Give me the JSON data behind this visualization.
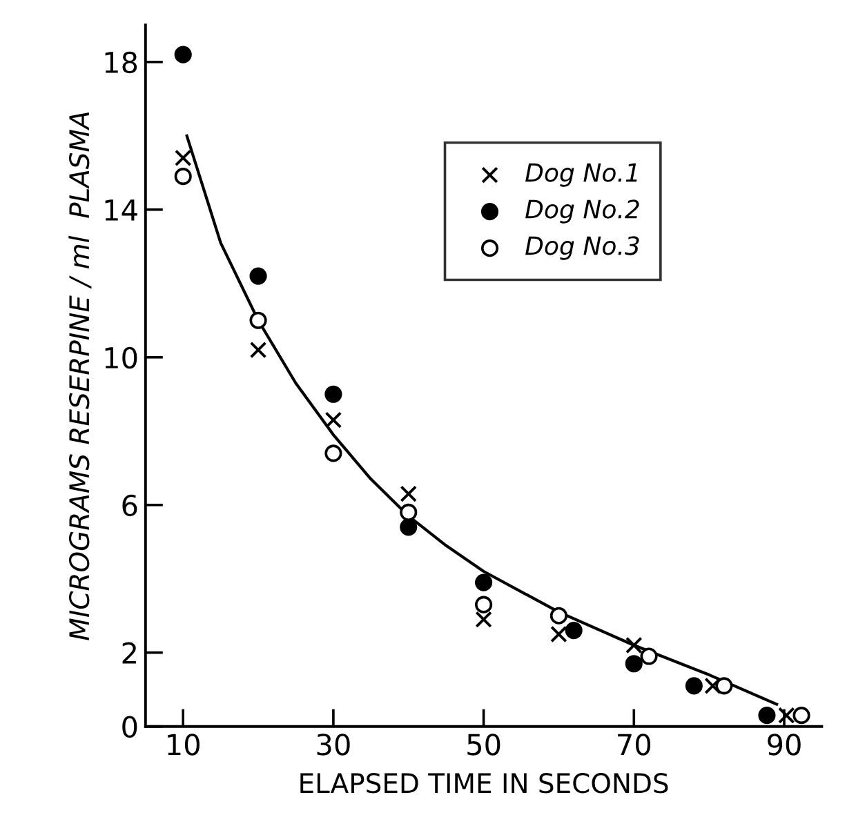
{
  "chart_data": {
    "type": "scatter",
    "xlabel": "ELAPSED TIME IN SECONDS",
    "ylabel": "MICROGRAMS RESERPINE / ml  PLASMA",
    "xlim": [
      5,
      95
    ],
    "ylim": [
      0,
      19
    ],
    "xticks": [
      10,
      30,
      50,
      70,
      90
    ],
    "yticks": [
      0,
      2,
      6,
      10,
      14,
      18
    ],
    "grid": false,
    "legend": "top right",
    "series": [
      {
        "name": "Dog No.1",
        "color": "#000000",
        "marker": "cross",
        "x": [
          10,
          20,
          30,
          40,
          50,
          60,
          70,
          80.5,
          90.3
        ],
        "values": [
          15.4,
          10.2,
          8.3,
          6.3,
          2.9,
          2.5,
          2.2,
          1.1,
          0.3
        ]
      },
      {
        "name": "Dog No.2",
        "color": "#000000",
        "marker": "circle",
        "x": [
          10,
          20,
          30,
          40,
          50,
          62,
          70,
          78,
          87.7
        ],
        "values": [
          18.2,
          12.2,
          9.0,
          5.4,
          3.9,
          2.6,
          1.7,
          1.1,
          0.3
        ]
      },
      {
        "name": "Dog No.3",
        "color": "#ffffff",
        "marker": "circle",
        "x": [
          10,
          20,
          30,
          40,
          50,
          60,
          72,
          82,
          92.3
        ],
        "values": [
          14.9,
          11.0,
          7.4,
          5.8,
          3.3,
          3.0,
          1.9,
          1.1,
          0.3
        ]
      },
      {
        "type": "line",
        "color": "#000000",
        "marker": "none",
        "x": [
          10.5,
          15,
          20,
          25,
          30,
          35,
          40,
          45,
          50,
          60,
          70,
          80,
          89
        ],
        "values": [
          16.0,
          13.1,
          11.0,
          9.3,
          7.9,
          6.7,
          5.7,
          4.9,
          4.2,
          3.1,
          2.2,
          1.4,
          0.6
        ]
      }
    ]
  }
}
